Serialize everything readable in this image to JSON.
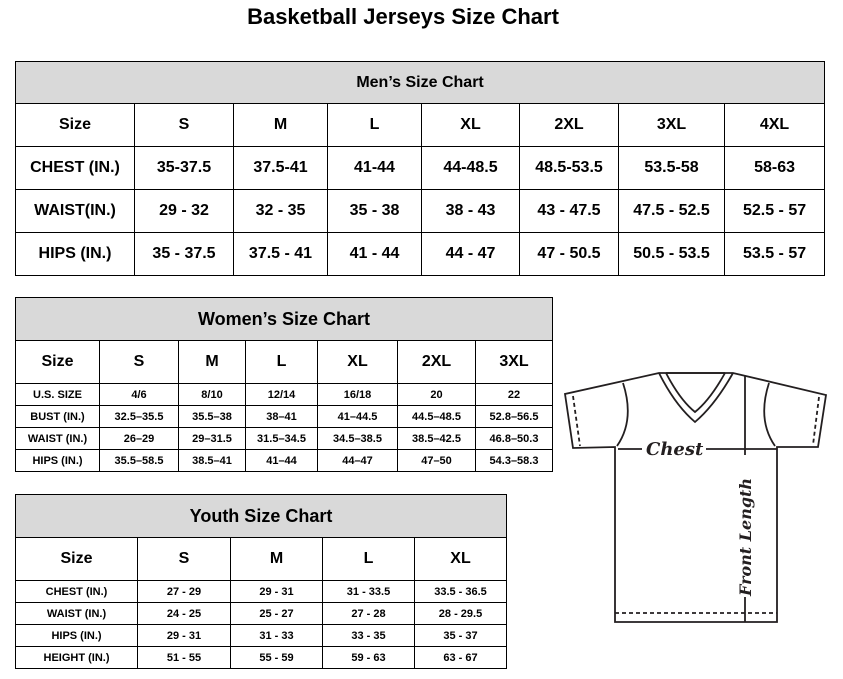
{
  "title": "Basketball Jerseys Size Chart",
  "men": {
    "title": "Men’s Size Chart",
    "headers": [
      "Size",
      "S",
      "M",
      "L",
      "XL",
      "2XL",
      "3XL",
      "4XL"
    ],
    "rows": [
      [
        "CHEST (IN.)",
        "35-37.5",
        "37.5-41",
        "41-44",
        "44-48.5",
        "48.5-53.5",
        "53.5-58",
        "58-63"
      ],
      [
        "WAIST(IN.)",
        "29 - 32",
        "32 - 35",
        "35 - 38",
        "38 - 43",
        "43 - 47.5",
        "47.5 - 52.5",
        "52.5 - 57"
      ],
      [
        "HIPS (IN.)",
        "35 - 37.5",
        "37.5 - 41",
        "41 - 44",
        "44 - 47",
        "47 - 50.5",
        "50.5 - 53.5",
        "53.5 - 57"
      ]
    ]
  },
  "women": {
    "title": "Women’s Size Chart",
    "headers": [
      "Size",
      "S",
      "M",
      "L",
      "XL",
      "2XL",
      "3XL"
    ],
    "rows": [
      [
        "U.S. SIZE",
        "4/6",
        "8/10",
        "12/14",
        "16/18",
        "20",
        "22"
      ],
      [
        "BUST (IN.)",
        "32.5–35.5",
        "35.5–38",
        "38–41",
        "41–44.5",
        "44.5–48.5",
        "52.8–56.5"
      ],
      [
        "WAIST (IN.)",
        "26–29",
        "29–31.5",
        "31.5–34.5",
        "34.5–38.5",
        "38.5–42.5",
        "46.8–50.3"
      ],
      [
        "HIPS (IN.)",
        "35.5–58.5",
        "38.5–41",
        "41–44",
        "44–47",
        "47–50",
        "54.3–58.3"
      ]
    ]
  },
  "youth": {
    "title": "Youth Size Chart",
    "headers": [
      "Size",
      "S",
      "M",
      "L",
      "XL"
    ],
    "rows": [
      [
        "CHEST (IN.)",
        "27 - 29",
        "29 - 31",
        "31 - 33.5",
        "33.5 - 36.5"
      ],
      [
        "WAIST (IN.)",
        "24 - 25",
        "25 - 27",
        "27 - 28",
        "28 - 29.5"
      ],
      [
        "HIPS (IN.)",
        "29 - 31",
        "31 - 33",
        "33 - 35",
        "35 - 37"
      ],
      [
        "HEIGHT (IN.)",
        "51 - 55",
        "55 - 59",
        "59 - 63",
        "63 - 67"
      ]
    ]
  },
  "diagram": {
    "chest_label": "Chest",
    "length_label": "Front Length"
  }
}
